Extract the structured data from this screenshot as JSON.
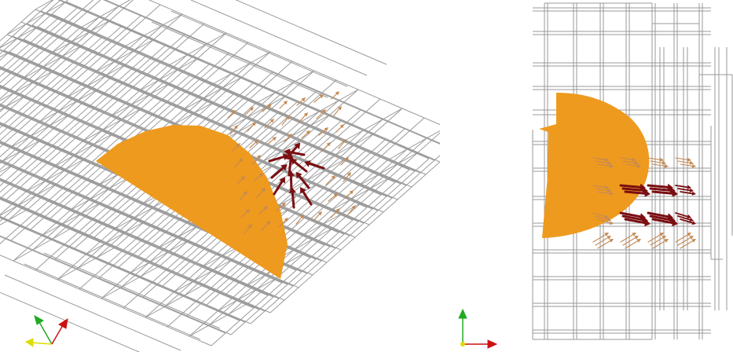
{
  "colors": {
    "background": "#ffffff",
    "grid": "#9a9a9a",
    "disc": "#ee9a1e",
    "arrow_strong": "#7a0f12",
    "arrow_weak": "#c48a55",
    "axis_x": "#cc1111",
    "axis_y": "#22aa22",
    "axis_z": "#dddd00"
  },
  "views": [
    {
      "name": "perspective-view",
      "projection": "oblique"
    },
    {
      "name": "side-view",
      "projection": "orthographic"
    }
  ],
  "legend": {
    "left_triad_icon": "xyz-orientation-triad-icon",
    "right_triad_icon": "xy-orientation-triad-icon"
  }
}
